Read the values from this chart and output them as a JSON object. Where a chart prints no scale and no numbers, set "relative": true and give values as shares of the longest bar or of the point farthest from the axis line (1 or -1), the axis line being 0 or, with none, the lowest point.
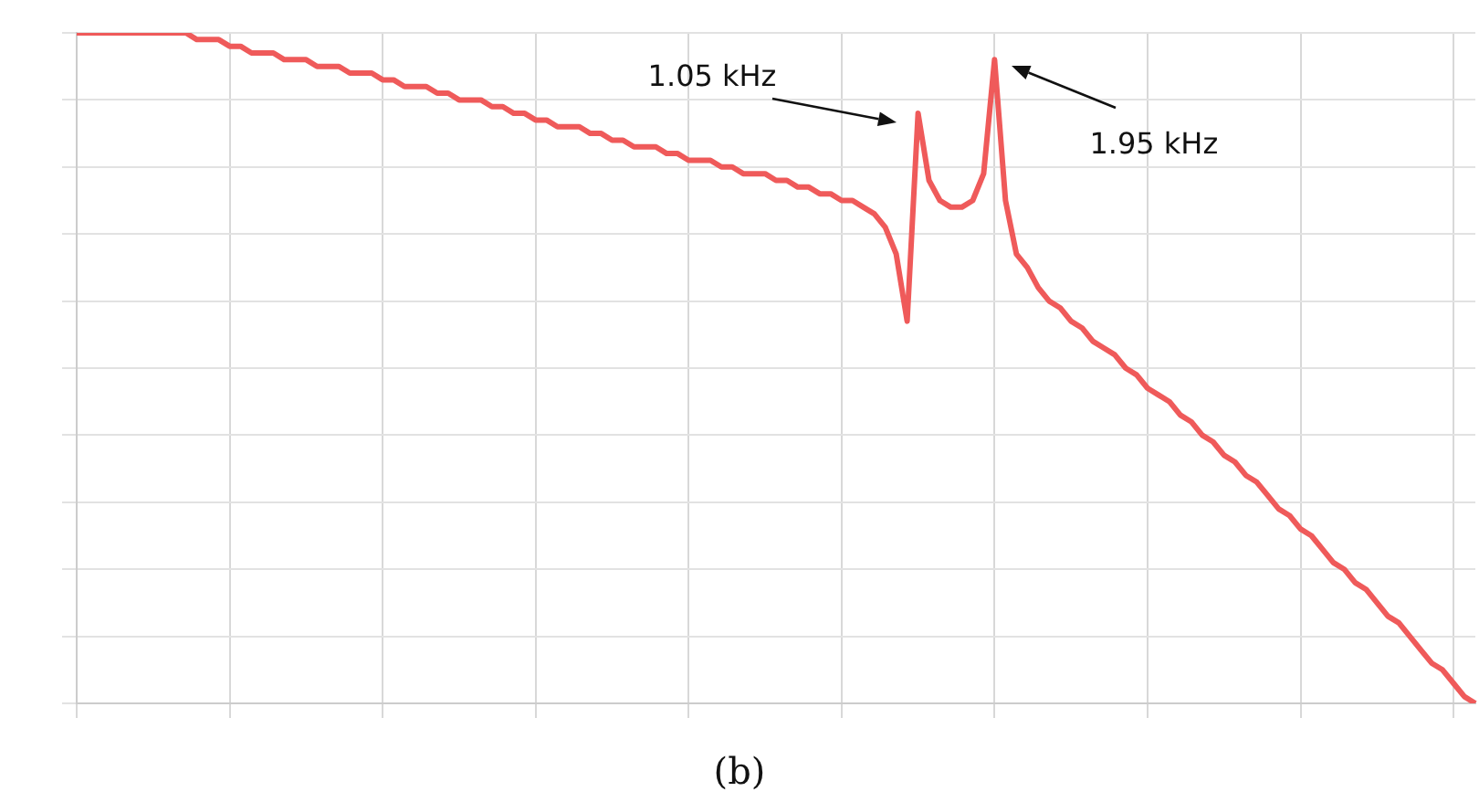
{
  "chart_data": {
    "type": "line",
    "title": "(b)",
    "relative": true,
    "grid": true,
    "legend": false,
    "tick_labels": false,
    "marker": "none",
    "line_style": "solid",
    "color": "#ef5a5a",
    "annotations": [
      "1.05 kHz",
      "1.95 kHz"
    ],
    "categories": [
      null,
      null,
      null,
      null,
      null,
      null,
      null,
      null,
      null,
      null,
      null,
      null,
      null,
      null,
      null,
      null,
      null,
      null,
      null,
      null,
      null,
      null,
      null,
      null,
      null,
      null,
      null,
      null,
      null,
      null,
      null,
      null,
      null,
      null,
      null,
      null,
      null,
      null,
      null,
      null,
      null,
      null,
      null,
      null,
      null,
      null,
      null,
      null,
      null,
      null,
      null,
      null,
      null,
      null,
      null,
      null,
      null,
      null,
      null,
      null,
      null,
      null,
      null,
      null,
      null,
      null,
      null,
      null,
      null,
      null,
      null,
      null,
      null,
      null,
      null,
      null,
      null,
      null,
      null,
      null,
      null,
      null,
      null,
      null,
      null,
      null,
      null,
      null,
      null,
      null,
      null,
      null,
      null,
      null,
      null,
      null,
      null,
      null,
      null,
      null,
      null,
      null,
      null,
      null,
      null,
      null,
      null,
      null,
      null,
      null,
      null,
      null,
      null,
      null,
      null,
      null,
      null,
      null,
      null,
      null,
      null,
      null,
      null,
      null,
      null,
      null,
      null,
      null,
      null
    ],
    "values": [
      1.0,
      1.0,
      1.0,
      1.0,
      1.0,
      1.0,
      1.0,
      1.0,
      1.0,
      1.0,
      1.0,
      0.99,
      0.99,
      0.99,
      0.98,
      0.98,
      0.97,
      0.97,
      0.97,
      0.96,
      0.96,
      0.96,
      0.95,
      0.95,
      0.95,
      0.94,
      0.94,
      0.94,
      0.93,
      0.93,
      0.92,
      0.92,
      0.92,
      0.91,
      0.91,
      0.9,
      0.9,
      0.9,
      0.89,
      0.89,
      0.88,
      0.88,
      0.87,
      0.87,
      0.86,
      0.86,
      0.86,
      0.85,
      0.85,
      0.84,
      0.84,
      0.83,
      0.83,
      0.83,
      0.82,
      0.82,
      0.81,
      0.81,
      0.81,
      0.8,
      0.8,
      0.79,
      0.79,
      0.79,
      0.78,
      0.78,
      0.77,
      0.77,
      0.76,
      0.76,
      0.75,
      0.75,
      0.74,
      0.73,
      0.71,
      0.67,
      0.57,
      0.88,
      0.78,
      0.75,
      0.74,
      0.74,
      0.75,
      0.79,
      0.96,
      0.75,
      0.67,
      0.65,
      0.62,
      0.6,
      0.59,
      0.57,
      0.56,
      0.54,
      0.53,
      0.52,
      0.5,
      0.49,
      0.47,
      0.46,
      0.45,
      0.43,
      0.42,
      0.4,
      0.39,
      0.37,
      0.36,
      0.34,
      0.33,
      0.31,
      0.29,
      0.28,
      0.26,
      0.25,
      0.23,
      0.21,
      0.2,
      0.18,
      0.17,
      0.15,
      0.13,
      0.12,
      0.1,
      0.08,
      0.06,
      0.05,
      0.03,
      0.01,
      0.0
    ]
  }
}
